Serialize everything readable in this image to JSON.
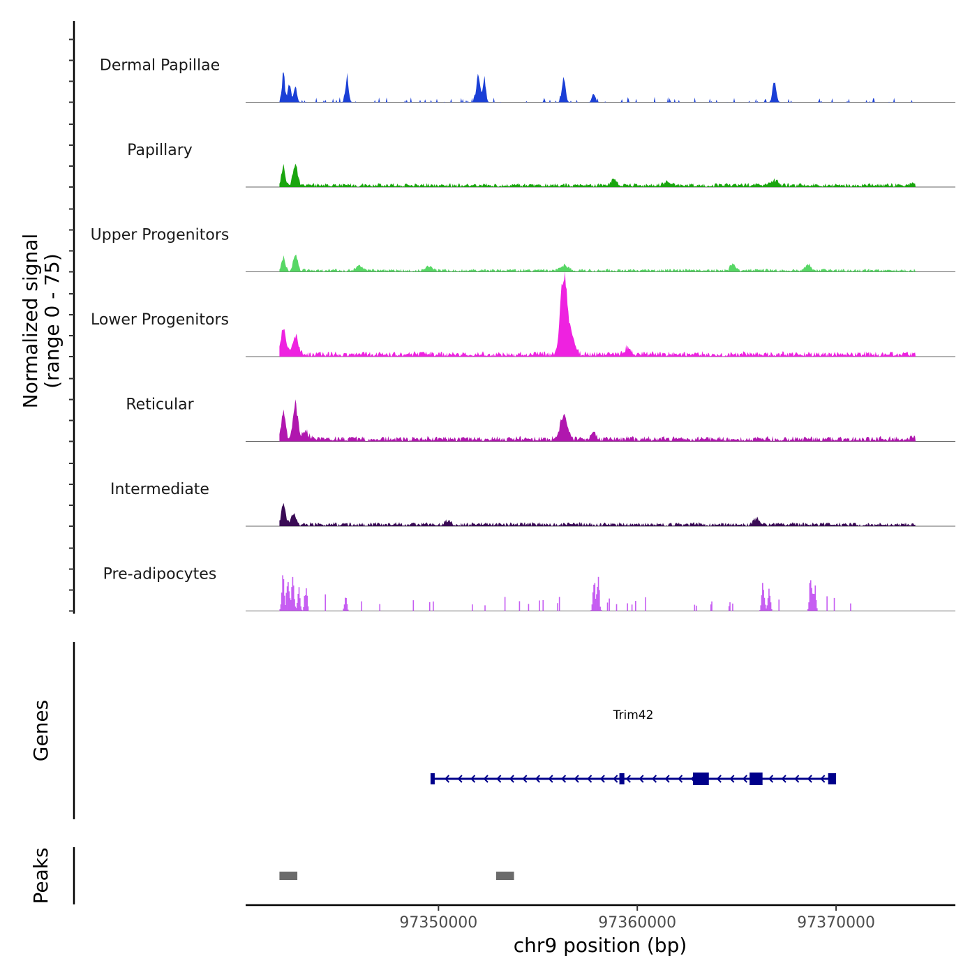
{
  "chart_data": {
    "type": "area",
    "title": "",
    "chromosome": "chr9",
    "xlabel": "chr9 position (bp)",
    "ylabel_line1": "Normalized signal",
    "ylabel_line2": "(range 0 - 75)",
    "y_range": [
      0,
      75
    ],
    "xlim": [
      97340300,
      97376000
    ],
    "signal_region": [
      97342000,
      97374000
    ],
    "x_ticks": [
      97350000,
      97360000,
      97370000
    ],
    "x_tick_labels": [
      "97350000",
      "97360000",
      "97370000"
    ],
    "tracks": [
      {
        "name": "Dermal Papillae",
        "color": "#1a3fd6",
        "style": "spiky",
        "baseline": 0.5,
        "density": 0.55,
        "peaks": [
          {
            "pos": 97342200,
            "height": 40,
            "width": 60
          },
          {
            "pos": 97342500,
            "height": 22,
            "width": 80
          },
          {
            "pos": 97342800,
            "height": 18,
            "width": 80
          },
          {
            "pos": 97345400,
            "height": 28,
            "width": 80
          },
          {
            "pos": 97352000,
            "height": 32,
            "width": 90
          },
          {
            "pos": 97352300,
            "height": 25,
            "width": 80
          },
          {
            "pos": 97356300,
            "height": 28,
            "width": 90
          },
          {
            "pos": 97357800,
            "height": 10,
            "width": 80
          },
          {
            "pos": 97366900,
            "height": 24,
            "width": 90
          }
        ]
      },
      {
        "name": "Papillary",
        "color": "#1aa50f",
        "style": "smooth",
        "baseline": 1.5,
        "density": 1.0,
        "peaks": [
          {
            "pos": 97342200,
            "height": 22,
            "width": 90
          },
          {
            "pos": 97342800,
            "height": 28,
            "width": 110
          },
          {
            "pos": 97358800,
            "height": 6,
            "width": 150
          },
          {
            "pos": 97361500,
            "height": 5,
            "width": 150
          },
          {
            "pos": 97366900,
            "height": 6,
            "width": 150
          },
          {
            "pos": 97374000,
            "height": 4,
            "width": 150
          }
        ]
      },
      {
        "name": "Upper Progenitors",
        "color": "#57d765",
        "style": "smooth",
        "baseline": 1.2,
        "density": 1.0,
        "peaks": [
          {
            "pos": 97342200,
            "height": 15,
            "width": 90
          },
          {
            "pos": 97342800,
            "height": 19,
            "width": 110
          },
          {
            "pos": 97346000,
            "height": 6,
            "width": 150
          },
          {
            "pos": 97349500,
            "height": 5,
            "width": 150
          },
          {
            "pos": 97356300,
            "height": 6,
            "width": 180
          },
          {
            "pos": 97364800,
            "height": 9,
            "width": 110
          },
          {
            "pos": 97368600,
            "height": 7,
            "width": 140
          }
        ]
      },
      {
        "name": "Lower Progenitors",
        "color": "#ee22e0",
        "style": "smooth",
        "baseline": 2.0,
        "density": 1.0,
        "peaks": [
          {
            "pos": 97342200,
            "height": 30,
            "width": 130
          },
          {
            "pos": 97342800,
            "height": 20,
            "width": 160
          },
          {
            "pos": 97356300,
            "height": 95,
            "width": 170
          },
          {
            "pos": 97356700,
            "height": 20,
            "width": 180
          },
          {
            "pos": 97359500,
            "height": 8,
            "width": 150
          }
        ]
      },
      {
        "name": "Reticular",
        "color": "#b017ae",
        "style": "smooth",
        "baseline": 2.0,
        "density": 1.0,
        "peaks": [
          {
            "pos": 97342200,
            "height": 35,
            "width": 100
          },
          {
            "pos": 97342800,
            "height": 40,
            "width": 120
          },
          {
            "pos": 97343300,
            "height": 10,
            "width": 150
          },
          {
            "pos": 97356300,
            "height": 30,
            "width": 170
          },
          {
            "pos": 97357800,
            "height": 10,
            "width": 100
          },
          {
            "pos": 97374000,
            "height": 6,
            "width": 120
          }
        ]
      },
      {
        "name": "Intermediate",
        "color": "#3a0b55",
        "style": "smooth",
        "baseline": 1.5,
        "density": 1.0,
        "peaks": [
          {
            "pos": 97342200,
            "height": 25,
            "width": 100
          },
          {
            "pos": 97342700,
            "height": 12,
            "width": 130
          },
          {
            "pos": 97350500,
            "height": 5,
            "width": 140
          },
          {
            "pos": 97366000,
            "height": 7,
            "width": 150
          }
        ]
      },
      {
        "name": "Pre-adipocytes",
        "color": "#c65df2",
        "style": "bars",
        "baseline": 0,
        "density": 1.0,
        "peaks": [
          {
            "pos": 97342150,
            "height": 48,
            "width": 60
          },
          {
            "pos": 97342400,
            "height": 52,
            "width": 60
          },
          {
            "pos": 97342650,
            "height": 40,
            "width": 60
          },
          {
            "pos": 97342950,
            "height": 28,
            "width": 60
          },
          {
            "pos": 97343300,
            "height": 32,
            "width": 60
          },
          {
            "pos": 97345300,
            "height": 18,
            "width": 60
          },
          {
            "pos": 97358000,
            "height": 42,
            "width": 60
          },
          {
            "pos": 97357800,
            "height": 35,
            "width": 60
          },
          {
            "pos": 97366300,
            "height": 42,
            "width": 60
          },
          {
            "pos": 97366600,
            "height": 30,
            "width": 60
          },
          {
            "pos": 97368700,
            "height": 45,
            "width": 60
          },
          {
            "pos": 97368900,
            "height": 30,
            "width": 60
          }
        ]
      }
    ],
    "genes": [
      {
        "name": "Trim42",
        "start": 97349700,
        "end": 97369900,
        "strand": "-",
        "color": "#00008b",
        "exons": [
          [
            97349600,
            97349800
          ],
          [
            97359100,
            97359350
          ],
          [
            97362800,
            97363600
          ],
          [
            97365650,
            97366300
          ],
          [
            97369600,
            97370000
          ]
        ]
      }
    ],
    "peak_regions": [
      {
        "start": 97342000,
        "end": 97342900
      },
      {
        "start": 97352900,
        "end": 97353800
      }
    ],
    "panel_titles": {
      "genes": "Genes",
      "peaks": "Peaks"
    },
    "peak_color": "#6b6b6b"
  }
}
